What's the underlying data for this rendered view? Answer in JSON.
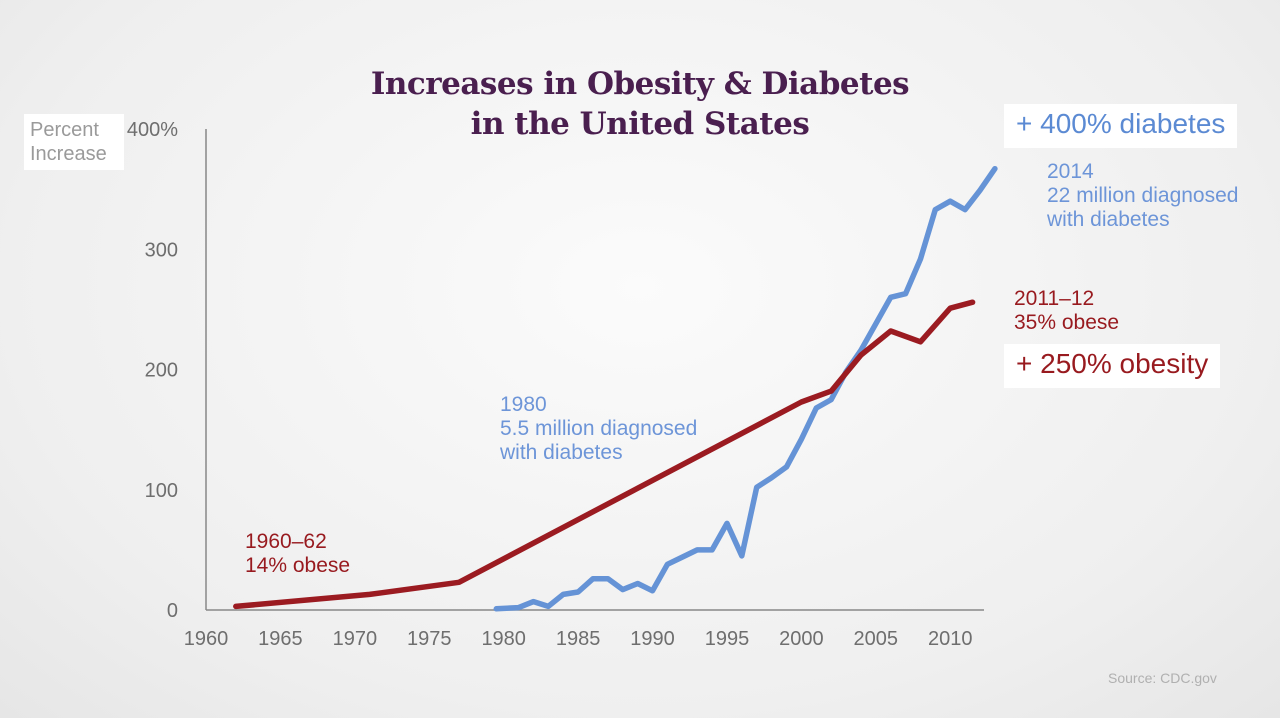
{
  "title_line1": "Increases in Obesity & Diabetes",
  "title_line2": "in the United States",
  "ylabel_line1": "Percent",
  "ylabel_line2": "Increase",
  "callouts": {
    "diabetes": "+ 400% diabetes",
    "obesity": "+ 250% obesity"
  },
  "annotations": {
    "obesity_start_line1": "1960–62",
    "obesity_start_line2": "14% obese",
    "diabetes_start_line1": "1980",
    "diabetes_start_line2": "5.5 million diagnosed",
    "diabetes_start_line3": "with diabetes",
    "diabetes_end_line1": "2014",
    "diabetes_end_line2": "22 million diagnosed",
    "diabetes_end_line3": "with diabetes",
    "obesity_end_line1": "2011–12",
    "obesity_end_line2": "35% obese"
  },
  "source": "Source: CDC.gov",
  "colors": {
    "diabetes": "#6593d6",
    "obesity": "#9b1b21",
    "axis": "#888888",
    "title": "#4a1f4f"
  },
  "chart_data": {
    "type": "line",
    "title": "Increases in Obesity & Diabetes in the United States",
    "ylabel": "Percent Increase",
    "xlabel": "",
    "xlim": [
      1960,
      2012
    ],
    "ylim": [
      0,
      400
    ],
    "x_ticks": [
      1960,
      1965,
      1970,
      1975,
      1980,
      1985,
      1990,
      1995,
      2000,
      2005,
      2010
    ],
    "y_ticks": [
      0,
      100,
      200,
      300,
      400
    ],
    "y_tick_labels": [
      "0",
      "100",
      "200",
      "300",
      "400%"
    ],
    "grid": false,
    "series": [
      {
        "key": "obesity",
        "x": [
          1962,
          1971,
          1977,
          2000,
          2002,
          2004,
          2006,
          2008,
          2010,
          2011.5
        ],
        "y": [
          3,
          13,
          23,
          173,
          182,
          212,
          232,
          223,
          251,
          256
        ]
      },
      {
        "key": "diabetes",
        "x": [
          1979.5,
          1981,
          1982,
          1983,
          1984,
          1985,
          1986,
          1987,
          1988,
          1989,
          1990,
          1991,
          1992,
          1993,
          1994,
          1995,
          1996,
          1997,
          1998,
          1999,
          2000,
          2001,
          2002,
          2003,
          2004,
          2005,
          2006,
          2007,
          2008,
          2009,
          2010,
          2011,
          2012,
          2013
        ],
        "y": [
          1,
          2,
          7,
          3,
          13,
          15,
          26,
          26,
          17,
          22,
          16,
          38,
          44,
          50,
          50,
          72,
          45,
          102,
          110,
          119,
          142,
          168,
          175,
          198,
          216,
          238,
          260,
          263,
          292,
          333,
          340,
          333,
          349,
          367
        ]
      }
    ]
  }
}
